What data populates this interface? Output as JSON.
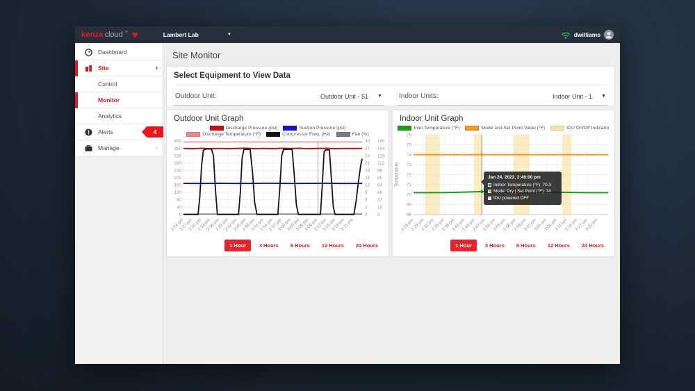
{
  "topbar": {
    "logo": {
      "primary": "kenza",
      "secondary": "cloud",
      "tm": "™"
    },
    "site_selector": {
      "value": "Lambert Lab"
    },
    "user": {
      "name": "dwilliams"
    }
  },
  "sidebar": {
    "badge_count": "4",
    "items": [
      {
        "label": "Dashboard"
      },
      {
        "label": "Site"
      },
      {
        "label": "Control"
      },
      {
        "label": "Monitor"
      },
      {
        "label": "Analytics"
      },
      {
        "label": "Alerts"
      },
      {
        "label": "Manage"
      }
    ]
  },
  "main": {
    "page_title": "Site Monitor",
    "equipment": {
      "title": "Select Equipment to View Data",
      "outdoor_label": "Outdoor Unit:",
      "outdoor_value": "Outdoor Unit - 51",
      "indoor_label": "Indoor Units:",
      "indoor_value": "Indoor Unit - 1"
    },
    "time_buttons": {
      "options": [
        "1 Hour",
        "3 Hours",
        "6 Hours",
        "12 Hours",
        "24 Hours"
      ],
      "active": "1 Hour"
    }
  },
  "chart_data": [
    {
      "type": "line",
      "title": "Outdoor Unit Graph",
      "legend": [
        {
          "label": "Discharge Pressure (psi)",
          "color": "#cc0e13"
        },
        {
          "label": "Suction Pressure (psi)",
          "color": "#1515c4"
        },
        {
          "label": "Discharge Temperature (°F)",
          "color": "#f4878d"
        },
        {
          "label": "Compressor Freq. (Hz)",
          "color": "#141414"
        },
        {
          "label": "Fan (%)",
          "color": "#7d7d7d"
        }
      ],
      "x_labels": [
        "2:24 pm",
        "2:27 pm",
        "2:30 pm",
        "2:33 pm",
        "2:36 pm",
        "2:39 pm",
        "2:42 pm",
        "2:45 pm",
        "2:48 pm",
        "2:51 pm",
        "2:54 pm",
        "2:57 pm",
        "3:00 pm",
        "3:03 pm",
        "3:06 pm",
        "3:09 pm",
        "3:12 pm",
        "3:15 pm",
        "3:18 pm",
        "3:21 pm"
      ],
      "x_minutes_per_label": 3,
      "x_max_minutes": 60,
      "axes": {
        "left": {
          "min": 0,
          "max": 400,
          "step": 40
        },
        "right1": {
          "min": 0,
          "max": 30,
          "step": 3
        },
        "right2": {
          "min": 0,
          "max": 160,
          "step": 16
        }
      },
      "crosshair_minute": 45.2,
      "series": [
        {
          "name": "Discharge Temperature (°F)",
          "axis": "right2",
          "color": "#f4878d",
          "width": 1.6,
          "points": [
            [
              0,
              158
            ],
            [
              60,
              158
            ]
          ]
        },
        {
          "name": "Fan (%)",
          "axis": "right2",
          "color": "#7d7d7d",
          "width": 1.6,
          "points": [
            [
              0,
              1
            ],
            [
              60,
              1
            ]
          ]
        },
        {
          "name": "Suction Pressure (psi)",
          "axis": "left",
          "color": "#1515c4",
          "width": 2,
          "points": [
            [
              0,
              170
            ],
            [
              6,
              169.5
            ],
            [
              12,
              170.5
            ],
            [
              18,
              169.5
            ],
            [
              24,
              170
            ],
            [
              30,
              170.5
            ],
            [
              36,
              169.5
            ],
            [
              42,
              170
            ],
            [
              48,
              170.5
            ],
            [
              54,
              169.5
            ],
            [
              60,
              170
            ]
          ]
        },
        {
          "name": "Discharge Pressure (psi)",
          "axis": "left",
          "color": "#cc0e13",
          "width": 2,
          "points": [
            [
              0,
              360
            ],
            [
              3,
              358.5
            ],
            [
              6,
              361
            ],
            [
              9,
              359
            ],
            [
              12,
              360.5
            ],
            [
              15,
              358.5
            ],
            [
              18,
              360
            ],
            [
              21,
              361.5
            ],
            [
              24,
              359
            ],
            [
              27,
              360.5
            ],
            [
              30,
              359
            ],
            [
              33,
              361
            ],
            [
              36,
              359.5
            ],
            [
              39,
              361
            ],
            [
              42,
              358.5
            ],
            [
              45,
              360
            ],
            [
              48,
              361
            ],
            [
              51,
              359
            ],
            [
              54,
              360.5
            ],
            [
              57,
              359.5
            ],
            [
              60,
              360.5
            ]
          ]
        },
        {
          "name": "Compressor Freq. (Hz)",
          "axis": "right1",
          "color": "#141414",
          "width": 1.8,
          "points": [
            [
              0,
              0
            ],
            [
              4.9,
              0
            ],
            [
              5.5,
              7
            ],
            [
              6.1,
              20
            ],
            [
              6.7,
              26.3
            ],
            [
              7.6,
              26.8
            ],
            [
              9.4,
              26.8
            ],
            [
              10.1,
              24
            ],
            [
              10.7,
              11
            ],
            [
              11.4,
              0
            ],
            [
              18.5,
              0
            ],
            [
              19.1,
              9
            ],
            [
              19.7,
              23
            ],
            [
              20.3,
              26.6
            ],
            [
              22.4,
              26.7
            ],
            [
              23.2,
              17
            ],
            [
              23.9,
              5
            ],
            [
              24.7,
              0
            ],
            [
              31.7,
              0
            ],
            [
              32.3,
              10
            ],
            [
              33.0,
              24
            ],
            [
              33.6,
              26.6
            ],
            [
              36.5,
              26.7
            ],
            [
              37.2,
              16
            ],
            [
              37.9,
              4
            ],
            [
              38.6,
              0
            ],
            [
              46.0,
              0
            ],
            [
              46.6,
              12
            ],
            [
              47.2,
              25.5
            ],
            [
              47.7,
              26.4
            ],
            [
              49.0,
              26.4
            ],
            [
              49.7,
              14
            ],
            [
              50.3,
              3
            ],
            [
              50.9,
              0
            ],
            [
              57.2,
              0
            ],
            [
              57.9,
              5
            ],
            [
              58.7,
              13
            ],
            [
              59.5,
              20
            ],
            [
              60,
              22.8
            ]
          ]
        }
      ]
    },
    {
      "type": "line",
      "title": "Indoor Unit Graph",
      "ylabel": "Temperature",
      "legend": [
        {
          "label": "Inlet Temperature (°F)",
          "color": "#17a01b"
        },
        {
          "label": "Mode and Set Point Value (°F)",
          "color": "#f59a23"
        },
        {
          "label": "IDU On/Off Indicator",
          "color": "#f7e3a5"
        }
      ],
      "x_labels": [
        "2:26 pm",
        "2:29 pm",
        "2:32 pm",
        "2:35 pm",
        "2:38 pm",
        "2:41 pm",
        "2:44 pm",
        "2:47 pm",
        "2:50 pm",
        "2:53 pm",
        "2:56 pm",
        "2:59 pm",
        "3:02 pm",
        "3:05 pm",
        "3:08 pm",
        "3:11 pm",
        "3:14 pm",
        "3:17 pm",
        "3:20 pm"
      ],
      "x_minutes_per_label": 3,
      "x_max_minutes": 57,
      "axes": {
        "left": {
          "min": 68,
          "max": 76,
          "step": 1
        }
      },
      "band_color": "#f7e3a5",
      "bands": [
        [
          3.4,
          7.7
        ],
        [
          17.7,
          20.0
        ],
        [
          29.2,
          34.0
        ],
        [
          43.5,
          46.2
        ]
      ],
      "crosshair_minute": 20,
      "series": [
        {
          "name": "Mode and Set Point Value (°F)",
          "axis": "left",
          "color": "#f59a23",
          "width": 2,
          "points": [
            [
              0,
              74
            ],
            [
              57,
              74
            ]
          ]
        },
        {
          "name": "Inlet Temperature (°F)",
          "axis": "left",
          "color": "#17a01b",
          "width": 2,
          "points": [
            [
              0,
              70.2
            ],
            [
              8,
              70.2
            ],
            [
              14,
              70.25
            ],
            [
              20,
              70.3
            ],
            [
              26,
              70.2
            ],
            [
              34,
              70.2
            ],
            [
              42,
              70.25
            ],
            [
              50,
              70.2
            ],
            [
              57,
              70.2
            ]
          ]
        }
      ],
      "markers": [
        {
          "minute": 20,
          "value": 74,
          "color": "#f59a23"
        },
        {
          "minute": 20,
          "value": 70.3,
          "color": "#17a01b"
        }
      ],
      "tooltip": {
        "title": "Jan 24, 2022, 2:46:00 pm",
        "rows": [
          {
            "color": "#17a01b",
            "text": "Indoor Temperature (°F): 70.3"
          },
          {
            "color": "#f59a23",
            "text": "Mode: Dry  |  Set Point (°F): 74"
          },
          {
            "color": "#f7e3a5",
            "text": "IDU powered OFF"
          }
        ]
      }
    }
  ]
}
